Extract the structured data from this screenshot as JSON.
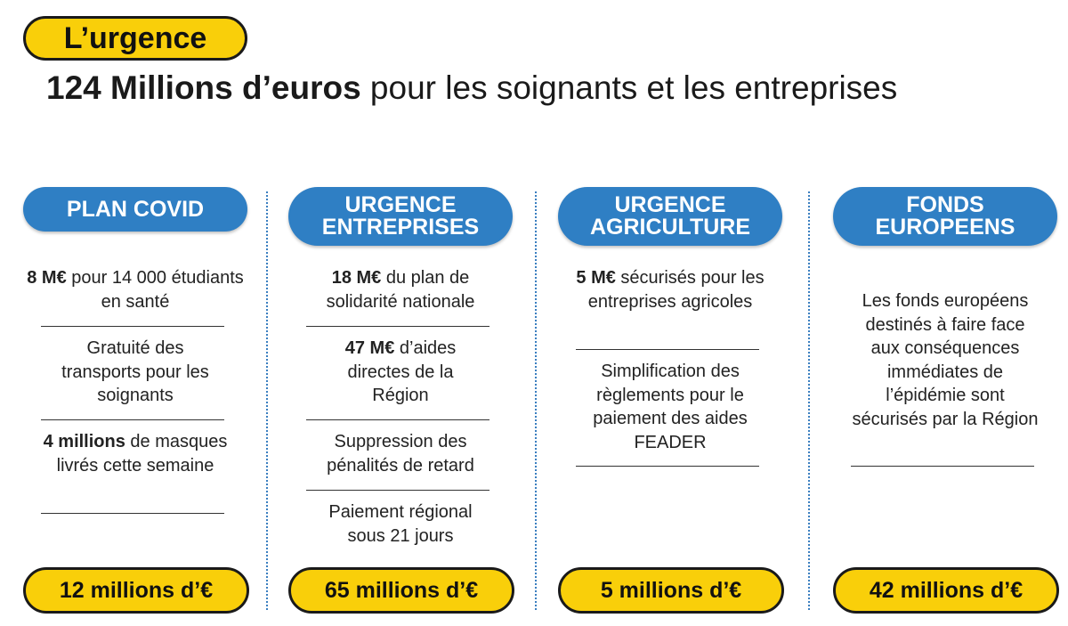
{
  "badge": "L’urgence",
  "headline": {
    "bold": "124 Millions d’euros",
    "rest": " pour les soignants et les entreprises"
  },
  "columns": [
    {
      "title_lines": [
        "PLAN COVID"
      ],
      "items": [
        {
          "bold": "8 M€",
          "text": " pour 14 000 étudiants en santé"
        },
        {
          "bold": "",
          "text": "Gratuité des transports pour les soignants"
        },
        {
          "bold": "4 millions",
          "text": " de masques livrés cette semaine"
        }
      ],
      "total": "12 millions d’€"
    },
    {
      "title_lines": [
        "URGENCE",
        "ENTREPRISES"
      ],
      "items": [
        {
          "bold": "18 M€",
          "text": " du plan de solidarité nationale"
        },
        {
          "bold": "47 M€",
          "text": " d’aides directes de la Région"
        },
        {
          "bold": "",
          "text": "Suppression des pénalités de retard"
        },
        {
          "bold": "",
          "text": "Paiement régional sous 21 jours"
        }
      ],
      "total": "65 millions d’€"
    },
    {
      "title_lines": [
        "URGENCE",
        "AGRICULTURE"
      ],
      "items": [
        {
          "bold": "5 M€",
          "text": " sécurisés pour les entreprises agricoles"
        },
        {
          "bold": "",
          "text": "Simplification des règlements pour le paiement des aides FEADER"
        }
      ],
      "total": "5 millions d’€"
    },
    {
      "title_lines": [
        "FONDS",
        "EUROPEENS"
      ],
      "items": [
        {
          "bold": "",
          "text": "Les fonds européens destinés à faire face aux conséquences immédiates de l’épidémie sont sécurisés par la Région"
        }
      ],
      "total": "42 millions d’€"
    }
  ],
  "colors": {
    "yellow": "#f9cf0a",
    "blue": "#2f7fc4",
    "dark": "#1a1a1a"
  }
}
